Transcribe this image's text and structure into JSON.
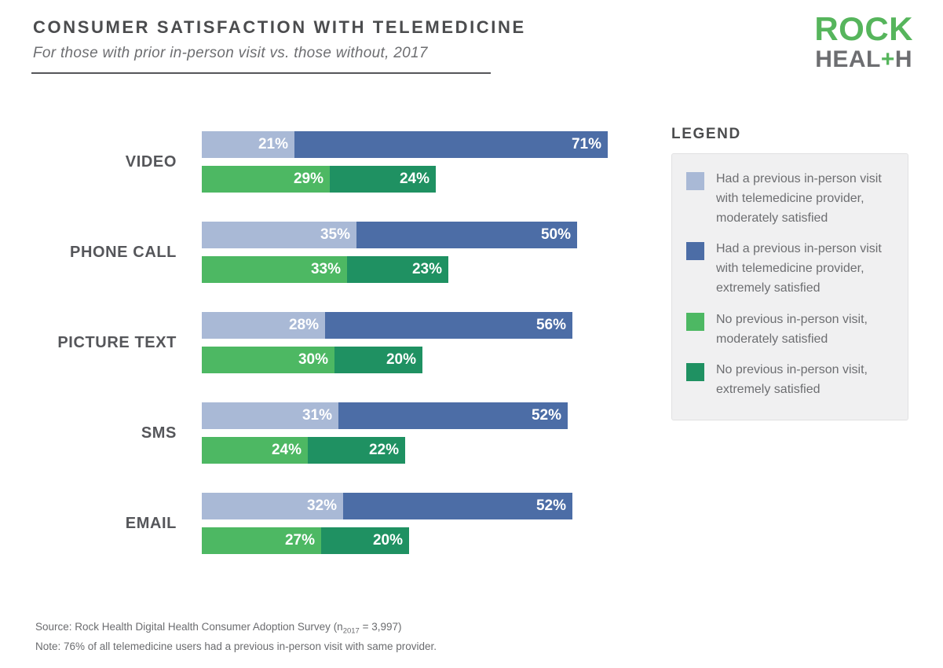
{
  "chart_data": {
    "type": "bar",
    "orientation": "horizontal",
    "title": "CONSUMER SATISFACTION WITH TELEMEDICINE",
    "subtitle": "For those with prior in-person visit vs. those without, 2017",
    "unit": "%",
    "xlim": [
      0,
      100
    ],
    "categories": [
      "VIDEO",
      "PHONE CALL",
      "PICTURE TEXT",
      "SMS",
      "EMAIL"
    ],
    "series": [
      {
        "name": "Had a previous in-person visit with telemedicine provider, moderately satisfied",
        "color": "#a9b9d6",
        "values": [
          21,
          35,
          28,
          31,
          32
        ]
      },
      {
        "name": "Had a previous in-person visit with telemedicine provider, extremely satisfied",
        "color": "#4c6da6",
        "values": [
          71,
          50,
          56,
          52,
          52
        ]
      },
      {
        "name": "No previous in-person visit, moderately satisfied",
        "color": "#4db863",
        "values": [
          29,
          33,
          30,
          24,
          27
        ]
      },
      {
        "name": "No previous in-person visit, extremely satisfied",
        "color": "#1f9162",
        "values": [
          24,
          23,
          20,
          22,
          20
        ]
      }
    ],
    "stacking": [
      [
        "series0",
        "series1"
      ],
      [
        "series2",
        "series3"
      ]
    ],
    "legend_position": "right",
    "grid": false
  },
  "legend": {
    "title": "LEGEND",
    "items": [
      {
        "color": "#a9b9d6",
        "label": "Had a previous in-person visit with telemedicine provider, moderately satisfied"
      },
      {
        "color": "#4c6da6",
        "label": "Had a previous in-person visit with telemedicine provider, extremely satisfied"
      },
      {
        "color": "#4db863",
        "label": "No previous in-person visit, moderately satisfied"
      },
      {
        "color": "#1f9162",
        "label": "No previous in-person visit, extremely satisfied"
      }
    ]
  },
  "logo": {
    "line1": "ROCK",
    "line2_part1": "HEAL",
    "line2_plus": "+",
    "line2_part2": "H"
  },
  "footer": {
    "source_prefix": "Source: Rock Health Digital Health Consumer Adoption Survey (n",
    "source_sub": "2017",
    "source_suffix": " = 3,997)",
    "note": "Note: 76% of all telemedicine users had a previous in-person visit with same provider."
  },
  "colors": {
    "prior_moderate": "#a9b9d6",
    "prior_extreme": "#4c6da6",
    "no_prior_moderate": "#4db863",
    "no_prior_extreme": "#1f9162",
    "logo_green": "#56b55c",
    "text_dark": "#4b4c4e",
    "text_gray": "#6d6e71",
    "legend_box_bg": "#f0f0f1"
  }
}
